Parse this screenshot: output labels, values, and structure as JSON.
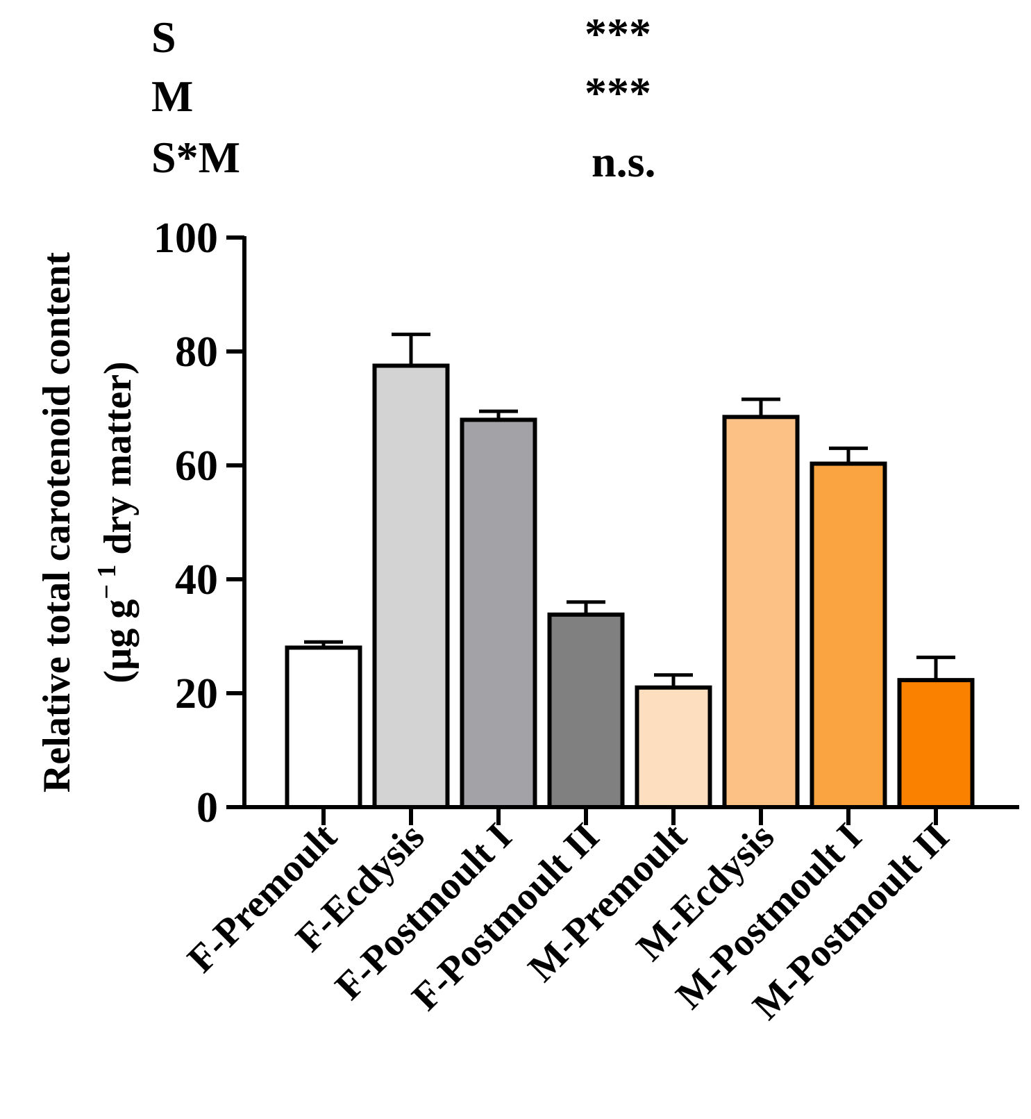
{
  "stats": [
    {
      "factor": "S",
      "significance": "***"
    },
    {
      "factor": "M",
      "significance": "***"
    },
    {
      "factor": "S*M",
      "significance": "n.s."
    }
  ],
  "chart_data": {
    "type": "bar",
    "title": "",
    "ylabel_line1": "Relative total carotenoid content",
    "ylabel_line2_prefix": "(µg g",
    "ylabel_superscript": "− 1",
    "ylabel_line2_suffix": " dry matter)",
    "ylim": [
      0,
      100
    ],
    "yticks": [
      0,
      20,
      40,
      60,
      80,
      100
    ],
    "categories": [
      "F-Premoult",
      "F-Ecdysis",
      "F-Postmoult  I",
      "F-Postmoult  II",
      "M-Premoult",
      "M-Ecdysis",
      "M-Postmoult  I",
      "M-Postmoult  II"
    ],
    "values": [
      28,
      77.5,
      68,
      33.8,
      21,
      68.5,
      60.3,
      22.3
    ],
    "errors": [
      1,
      5.5,
      1.5,
      2.2,
      2.2,
      3.1,
      2.7,
      4
    ],
    "colors": [
      "#ffffff",
      "#d3d3d3",
      "#a2a2a7",
      "#808080",
      "#fddfbf",
      "#fcc185",
      "#f9a341",
      "#fa8000"
    ]
  }
}
